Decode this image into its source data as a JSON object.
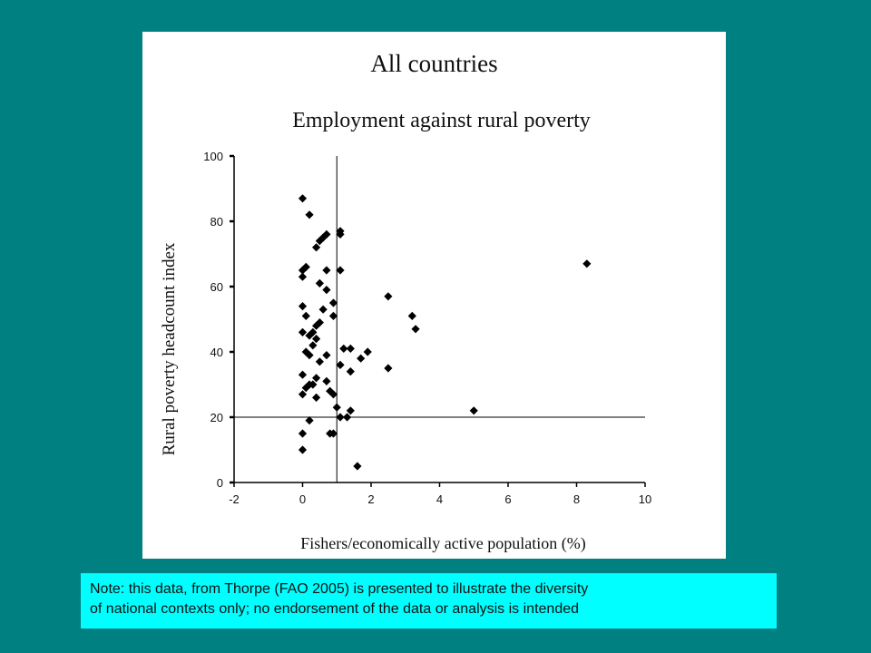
{
  "note": {
    "line1": "Note:  this data, from Thorpe (FAO 2005) is presented to illustrate the diversity",
    "line2": "of national contexts only; no endorsement of the data or analysis is intended"
  },
  "chart_data": {
    "type": "scatter",
    "title": "All countries",
    "subtitle": "Employment against rural poverty",
    "xlabel": "Fishers/economically active population (%)",
    "ylabel": "Rural poverty headcount index",
    "xlim": [
      -2,
      10
    ],
    "ylim": [
      0,
      100
    ],
    "xticks": [
      -2,
      0,
      2,
      4,
      6,
      8,
      10
    ],
    "yticks": [
      0,
      20,
      40,
      60,
      80,
      100
    ],
    "reference_lines": {
      "x": 1.0,
      "y": 20
    },
    "grid": false,
    "marker": "diamond",
    "marker_color": "#000000",
    "points": [
      {
        "x": 0.0,
        "y": 87
      },
      {
        "x": 0.2,
        "y": 82
      },
      {
        "x": 0.7,
        "y": 76
      },
      {
        "x": 1.1,
        "y": 77
      },
      {
        "x": 1.1,
        "y": 76
      },
      {
        "x": 0.6,
        "y": 75
      },
      {
        "x": 0.5,
        "y": 74
      },
      {
        "x": 0.4,
        "y": 72
      },
      {
        "x": 0.1,
        "y": 66
      },
      {
        "x": 0.0,
        "y": 65
      },
      {
        "x": 0.7,
        "y": 65
      },
      {
        "x": 1.1,
        "y": 65
      },
      {
        "x": 0.0,
        "y": 63
      },
      {
        "x": 0.5,
        "y": 61
      },
      {
        "x": 0.7,
        "y": 59
      },
      {
        "x": 2.5,
        "y": 57
      },
      {
        "x": 0.9,
        "y": 55
      },
      {
        "x": 0.0,
        "y": 54
      },
      {
        "x": 0.6,
        "y": 53
      },
      {
        "x": 3.2,
        "y": 51
      },
      {
        "x": 0.1,
        "y": 51
      },
      {
        "x": 0.9,
        "y": 51
      },
      {
        "x": 0.5,
        "y": 49
      },
      {
        "x": 0.4,
        "y": 48
      },
      {
        "x": 3.3,
        "y": 47
      },
      {
        "x": 0.0,
        "y": 46
      },
      {
        "x": 0.3,
        "y": 46
      },
      {
        "x": 0.2,
        "y": 45
      },
      {
        "x": 0.4,
        "y": 44
      },
      {
        "x": 0.3,
        "y": 42
      },
      {
        "x": 1.2,
        "y": 41
      },
      {
        "x": 1.4,
        "y": 41
      },
      {
        "x": 0.1,
        "y": 40
      },
      {
        "x": 1.9,
        "y": 40
      },
      {
        "x": 0.7,
        "y": 39
      },
      {
        "x": 0.2,
        "y": 39
      },
      {
        "x": 1.7,
        "y": 38
      },
      {
        "x": 0.5,
        "y": 37
      },
      {
        "x": 1.1,
        "y": 36
      },
      {
        "x": 2.5,
        "y": 35
      },
      {
        "x": 1.4,
        "y": 34
      },
      {
        "x": 0.0,
        "y": 33
      },
      {
        "x": 0.4,
        "y": 32
      },
      {
        "x": 0.7,
        "y": 31
      },
      {
        "x": 0.2,
        "y": 30
      },
      {
        "x": 0.3,
        "y": 30
      },
      {
        "x": 0.1,
        "y": 29
      },
      {
        "x": 0.8,
        "y": 28
      },
      {
        "x": 0.9,
        "y": 27
      },
      {
        "x": 0.0,
        "y": 27
      },
      {
        "x": 0.4,
        "y": 26
      },
      {
        "x": 1.0,
        "y": 23
      },
      {
        "x": 5.0,
        "y": 22
      },
      {
        "x": 1.4,
        "y": 22
      },
      {
        "x": 1.3,
        "y": 20
      },
      {
        "x": 1.1,
        "y": 20
      },
      {
        "x": 0.2,
        "y": 19
      },
      {
        "x": 0.9,
        "y": 15
      },
      {
        "x": 0.8,
        "y": 15
      },
      {
        "x": 0.0,
        "y": 15
      },
      {
        "x": 0.0,
        "y": 10
      },
      {
        "x": 1.6,
        "y": 5
      },
      {
        "x": 8.3,
        "y": 67
      }
    ]
  }
}
